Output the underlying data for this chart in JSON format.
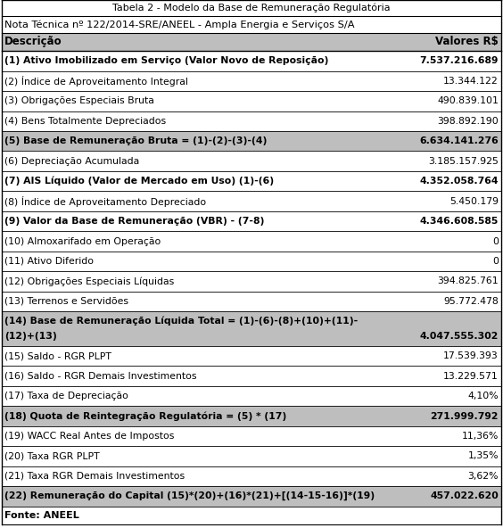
{
  "title": "Tabela 2 - Modelo da Base de Remuneração Regulatória",
  "subtitle": "Nota Técnica nº 122/2014-SRE/ANEEL - Ampla Energia e Serviços S/A",
  "header": [
    "Descrição",
    "Valores R$"
  ],
  "rows": [
    {
      "desc": "(1) Ativo Imobilizado em Serviço (Valor Novo de Reposição)",
      "val": "7.537.216.689",
      "bold": true,
      "shaded": false,
      "multiline": false
    },
    {
      "desc": "(2) Índice de Aproveitamento Integral",
      "val": "13.344.122",
      "bold": false,
      "shaded": false,
      "multiline": false
    },
    {
      "desc": "(3) Obrigações Especiais Bruta",
      "val": "490.839.101",
      "bold": false,
      "shaded": false,
      "multiline": false
    },
    {
      "desc": "(4) Bens Totalmente Depreciados",
      "val": "398.892.190",
      "bold": false,
      "shaded": false,
      "multiline": false
    },
    {
      "desc": "(5) Base de Remuneração Bruta = (1)-(2)-(3)-(4)",
      "val": "6.634.141.276",
      "bold": true,
      "shaded": true,
      "multiline": false
    },
    {
      "desc": "(6) Depreciação Acumulada",
      "val": "3.185.157.925",
      "bold": false,
      "shaded": false,
      "multiline": false
    },
    {
      "desc": "(7) AIS Líquido (Valor de Mercado em Uso) (1)-(6)",
      "val": "4.352.058.764",
      "bold": true,
      "shaded": false,
      "multiline": false
    },
    {
      "desc": "(8) Índice de Aproveitamento Depreciado",
      "val": "5.450.179",
      "bold": false,
      "shaded": false,
      "multiline": false
    },
    {
      "desc": "(9) Valor da Base de Remuneração (VBR) - (7-8)",
      "val": "4.346.608.585",
      "bold": true,
      "shaded": false,
      "multiline": false
    },
    {
      "desc": "(10) Almoxarifado em Operação",
      "val": "0",
      "bold": false,
      "shaded": false,
      "multiline": false
    },
    {
      "desc": "(11) Ativo Diferido",
      "val": "0",
      "bold": false,
      "shaded": false,
      "multiline": false
    },
    {
      "desc": "(12) Obrigações Especiais Líquidas",
      "val": "394.825.761",
      "bold": false,
      "shaded": false,
      "multiline": false
    },
    {
      "desc": "(13) Terrenos e Servidões",
      "val": "95.772.478",
      "bold": false,
      "shaded": false,
      "multiline": false
    },
    {
      "desc": "(14) Base de Remuneração Líquida Total = (1)-(6)-(8)+(10)+(11)-",
      "desc2": "(12)+(13)",
      "val": "4.047.555.302",
      "bold": true,
      "shaded": true,
      "multiline": true
    },
    {
      "desc": "(15) Saldo - RGR PLPT",
      "val": "17.539.393",
      "bold": false,
      "shaded": false,
      "multiline": false
    },
    {
      "desc": "(16) Saldo - RGR Demais Investimentos",
      "val": "13.229.571",
      "bold": false,
      "shaded": false,
      "multiline": false
    },
    {
      "desc": "(17) Taxa de Depreciação",
      "val": "4,10%",
      "bold": false,
      "shaded": false,
      "multiline": false
    },
    {
      "desc": "(18) Quota de Reintegração Regulatória = (5) * (17)",
      "val": "271.999.792",
      "bold": true,
      "shaded": true,
      "multiline": false
    },
    {
      "desc": "(19) WACC Real Antes de Impostos",
      "val": "11,36%",
      "bold": false,
      "shaded": false,
      "multiline": false
    },
    {
      "desc": "(20) Taxa RGR PLPT",
      "val": "1,35%",
      "bold": false,
      "shaded": false,
      "multiline": false
    },
    {
      "desc": "(21) Taxa RGR Demais Investimentos",
      "val": "3,62%",
      "bold": false,
      "shaded": false,
      "multiline": false
    },
    {
      "desc": "(22) Remuneração do Capital (15)*(20)+(16)*(21)+[(14-15-16)]*(19)",
      "val": "457.022.620",
      "bold": true,
      "shaded": true,
      "multiline": false
    }
  ],
  "footer": "Fonte: ANEEL",
  "shaded_color": "#bebebe",
  "header_shaded_color": "#bebebe",
  "border_color": "#000000",
  "fig_width": 5.64,
  "fig_height": 5.92,
  "dpi": 100,
  "title_fontsize": 8.0,
  "subtitle_fontsize": 8.2,
  "header_fontsize": 8.5,
  "row_fontsize": 7.8,
  "footer_fontsize": 8.0
}
